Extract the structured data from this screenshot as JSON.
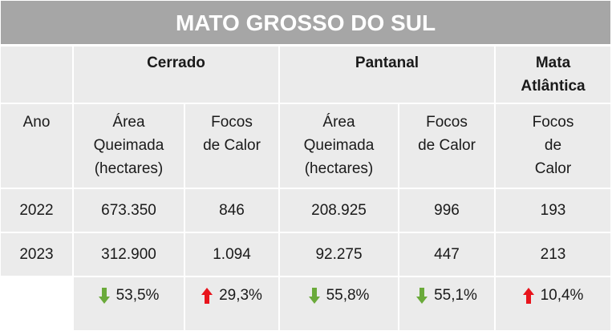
{
  "title": "MATO GROSSO DO SUL",
  "biomes": {
    "cerrado": "Cerrado",
    "pantanal": "Pantanal",
    "mata_atlantica_l1": "Mata",
    "mata_atlantica_l2": "Atlântica"
  },
  "headers": {
    "ano": "Ano",
    "area_l1": "Área",
    "area_l2": "Queimada",
    "area_l3": "(hectares)",
    "focos_l1": "Focos",
    "focos_l2": "de Calor",
    "mata_focos_l1": "Focos",
    "mata_focos_l2": "de",
    "mata_focos_l3": "Calor"
  },
  "rows": [
    {
      "ano": "2022",
      "cerrado_area": "673.350",
      "cerrado_focos": "846",
      "pantanal_area": "208.925",
      "pantanal_focos": "996",
      "mata_focos": "193"
    },
    {
      "ano": "2023",
      "cerrado_area": "312.900",
      "cerrado_focos": "1.094",
      "pantanal_area": "92.275",
      "pantanal_focos": "447",
      "mata_focos": "213"
    }
  ],
  "change": {
    "cerrado_area": {
      "value": "53,5%",
      "direction": "down"
    },
    "cerrado_focos": {
      "value": "29,3%",
      "direction": "up"
    },
    "pantanal_area": {
      "value": "55,8%",
      "direction": "down"
    },
    "pantanal_focos": {
      "value": "55,1%",
      "direction": "down"
    },
    "mata_focos": {
      "value": "10,4%",
      "direction": "up"
    }
  },
  "colors": {
    "title_bg": "#a6a6a6",
    "cell_bg": "#ebebeb",
    "arrow_down": "#6aaa3a",
    "arrow_up": "#e8141c"
  }
}
